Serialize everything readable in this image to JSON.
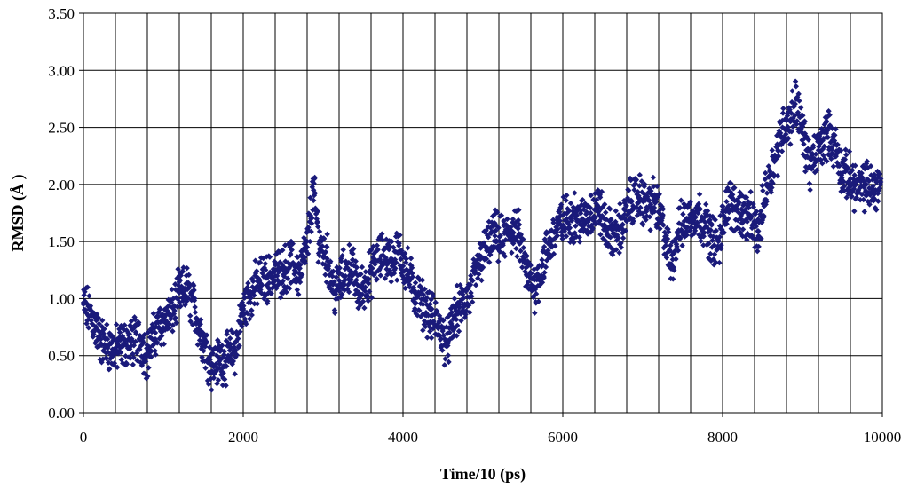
{
  "chart_data": {
    "type": "scatter",
    "title": "",
    "xlabel": "Time/10 (ps)",
    "ylabel": "RMSD (Å )",
    "xlim": [
      0,
      10000
    ],
    "ylim": [
      0,
      3.5
    ],
    "x_ticks": [
      "0",
      "2000",
      "4000",
      "6000",
      "8000",
      "10000"
    ],
    "y_ticks": [
      "0.00",
      "0.50",
      "1.00",
      "1.50",
      "2.00",
      "2.50",
      "3.00",
      "3.50"
    ],
    "grid": true,
    "legend": "none",
    "marker": "diamond",
    "marker_color": "#1a1a7a",
    "series": [
      {
        "points": [
          [
            0,
            0.95
          ],
          [
            100,
            0.85
          ],
          [
            200,
            0.65
          ],
          [
            300,
            0.58
          ],
          [
            400,
            0.55
          ],
          [
            500,
            0.6
          ],
          [
            600,
            0.62
          ],
          [
            700,
            0.65
          ],
          [
            800,
            0.5
          ],
          [
            900,
            0.7
          ],
          [
            1000,
            0.8
          ],
          [
            1100,
            0.85
          ],
          [
            1200,
            1.05
          ],
          [
            1300,
            1.08
          ],
          [
            1400,
            0.88
          ],
          [
            1500,
            0.62
          ],
          [
            1600,
            0.42
          ],
          [
            1700,
            0.45
          ],
          [
            1800,
            0.48
          ],
          [
            1900,
            0.55
          ],
          [
            2000,
            0.9
          ],
          [
            2100,
            1.05
          ],
          [
            2200,
            1.15
          ],
          [
            2300,
            1.18
          ],
          [
            2400,
            1.2
          ],
          [
            2500,
            1.25
          ],
          [
            2600,
            1.3
          ],
          [
            2700,
            1.22
          ],
          [
            2800,
            1.45
          ],
          [
            2880,
            1.95
          ],
          [
            2950,
            1.5
          ],
          [
            3050,
            1.35
          ],
          [
            3150,
            1.05
          ],
          [
            3250,
            1.2
          ],
          [
            3350,
            1.3
          ],
          [
            3450,
            1.05
          ],
          [
            3550,
            1.15
          ],
          [
            3650,
            1.3
          ],
          [
            3750,
            1.38
          ],
          [
            3850,
            1.35
          ],
          [
            3950,
            1.4
          ],
          [
            4050,
            1.25
          ],
          [
            4150,
            1.05
          ],
          [
            4250,
            0.95
          ],
          [
            4350,
            0.85
          ],
          [
            4450,
            0.75
          ],
          [
            4550,
            0.6
          ],
          [
            4650,
            0.85
          ],
          [
            4750,
            0.95
          ],
          [
            4850,
            1.05
          ],
          [
            4950,
            1.3
          ],
          [
            5050,
            1.45
          ],
          [
            5150,
            1.55
          ],
          [
            5250,
            1.5
          ],
          [
            5350,
            1.6
          ],
          [
            5450,
            1.55
          ],
          [
            5550,
            1.2
          ],
          [
            5650,
            1.1
          ],
          [
            5750,
            1.3
          ],
          [
            5850,
            1.5
          ],
          [
            5950,
            1.65
          ],
          [
            6050,
            1.7
          ],
          [
            6150,
            1.72
          ],
          [
            6250,
            1.68
          ],
          [
            6350,
            1.75
          ],
          [
            6450,
            1.8
          ],
          [
            6550,
            1.6
          ],
          [
            6650,
            1.55
          ],
          [
            6750,
            1.65
          ],
          [
            6850,
            1.85
          ],
          [
            6950,
            1.9
          ],
          [
            7050,
            1.8
          ],
          [
            7150,
            1.85
          ],
          [
            7250,
            1.65
          ],
          [
            7350,
            1.3
          ],
          [
            7450,
            1.6
          ],
          [
            7550,
            1.7
          ],
          [
            7650,
            1.75
          ],
          [
            7750,
            1.7
          ],
          [
            7850,
            1.55
          ],
          [
            7950,
            1.45
          ],
          [
            8050,
            1.85
          ],
          [
            8150,
            1.8
          ],
          [
            8250,
            1.75
          ],
          [
            8350,
            1.7
          ],
          [
            8450,
            1.55
          ],
          [
            8550,
            2.0
          ],
          [
            8650,
            2.2
          ],
          [
            8750,
            2.5
          ],
          [
            8850,
            2.55
          ],
          [
            8920,
            2.75
          ],
          [
            9000,
            2.45
          ],
          [
            9100,
            2.15
          ],
          [
            9200,
            2.3
          ],
          [
            9300,
            2.45
          ],
          [
            9400,
            2.35
          ],
          [
            9500,
            2.1
          ],
          [
            9600,
            2.05
          ],
          [
            9700,
            1.95
          ],
          [
            9800,
            2.0
          ],
          [
            9900,
            1.95
          ],
          [
            9980,
            2.05
          ]
        ]
      }
    ]
  }
}
